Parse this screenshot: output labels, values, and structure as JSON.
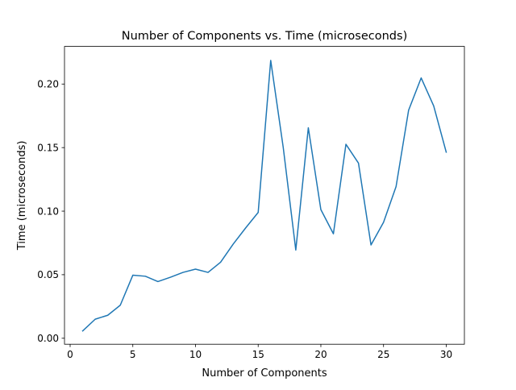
{
  "chart_data": {
    "type": "line",
    "title": "Number of Components vs. Time (microseconds)",
    "xlabel": "Number of Components",
    "ylabel": "Time (microseconds)",
    "xlim": [
      -0.45,
      31.45
    ],
    "ylim": [
      -0.0047,
      0.2296
    ],
    "x_ticks": [
      0,
      5,
      10,
      15,
      20,
      25,
      30
    ],
    "x_tick_labels": [
      "0",
      "5",
      "10",
      "15",
      "20",
      "25",
      "30"
    ],
    "y_ticks": [
      0.0,
      0.05,
      0.1,
      0.15,
      0.2
    ],
    "y_tick_labels": [
      "0.00",
      "0.05",
      "0.10",
      "0.15",
      "0.20"
    ],
    "grid": false,
    "legend": "none",
    "series": [
      {
        "color": "#1f77b4",
        "x": [
          1,
          2,
          3,
          4,
          5,
          6,
          7,
          8,
          9,
          10,
          11,
          12,
          13,
          14,
          15,
          16,
          17,
          18,
          19,
          20,
          21,
          22,
          23,
          24,
          25,
          26,
          27,
          28,
          29,
          30
        ],
        "values": [
          0.0058,
          0.015,
          0.0181,
          0.026,
          0.0496,
          0.0488,
          0.0446,
          0.048,
          0.0518,
          0.0544,
          0.0518,
          0.0598,
          0.074,
          0.0868,
          0.099,
          0.2186,
          0.15,
          0.0694,
          0.1656,
          0.1012,
          0.0822,
          0.1526,
          0.1378,
          0.0734,
          0.0912,
          0.1194,
          0.1794,
          0.2048,
          0.1828,
          0.1464
        ]
      }
    ]
  }
}
